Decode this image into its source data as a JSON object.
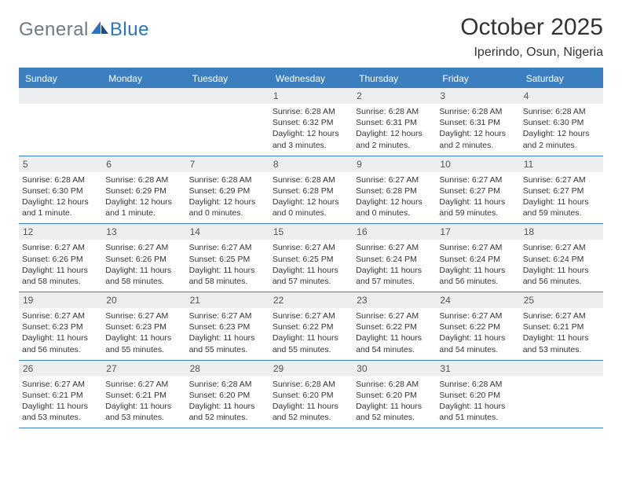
{
  "logo": {
    "general": "General",
    "blue": "Blue"
  },
  "title": "October 2025",
  "location": "Iperindo, Osun, Nigeria",
  "colors": {
    "accent": "#3b7fbf",
    "daybar": "#eceeef",
    "text": "#333333",
    "logo_gray": "#6b7a86",
    "logo_blue": "#2b74c0"
  },
  "dow": [
    "Sunday",
    "Monday",
    "Tuesday",
    "Wednesday",
    "Thursday",
    "Friday",
    "Saturday"
  ],
  "weeks": [
    [
      null,
      null,
      null,
      {
        "n": "1",
        "sunrise": "Sunrise: 6:28 AM",
        "sunset": "Sunset: 6:32 PM",
        "daylight": "Daylight: 12 hours and 3 minutes."
      },
      {
        "n": "2",
        "sunrise": "Sunrise: 6:28 AM",
        "sunset": "Sunset: 6:31 PM",
        "daylight": "Daylight: 12 hours and 2 minutes."
      },
      {
        "n": "3",
        "sunrise": "Sunrise: 6:28 AM",
        "sunset": "Sunset: 6:31 PM",
        "daylight": "Daylight: 12 hours and 2 minutes."
      },
      {
        "n": "4",
        "sunrise": "Sunrise: 6:28 AM",
        "sunset": "Sunset: 6:30 PM",
        "daylight": "Daylight: 12 hours and 2 minutes."
      }
    ],
    [
      {
        "n": "5",
        "sunrise": "Sunrise: 6:28 AM",
        "sunset": "Sunset: 6:30 PM",
        "daylight": "Daylight: 12 hours and 1 minute."
      },
      {
        "n": "6",
        "sunrise": "Sunrise: 6:28 AM",
        "sunset": "Sunset: 6:29 PM",
        "daylight": "Daylight: 12 hours and 1 minute."
      },
      {
        "n": "7",
        "sunrise": "Sunrise: 6:28 AM",
        "sunset": "Sunset: 6:29 PM",
        "daylight": "Daylight: 12 hours and 0 minutes."
      },
      {
        "n": "8",
        "sunrise": "Sunrise: 6:28 AM",
        "sunset": "Sunset: 6:28 PM",
        "daylight": "Daylight: 12 hours and 0 minutes."
      },
      {
        "n": "9",
        "sunrise": "Sunrise: 6:27 AM",
        "sunset": "Sunset: 6:28 PM",
        "daylight": "Daylight: 12 hours and 0 minutes."
      },
      {
        "n": "10",
        "sunrise": "Sunrise: 6:27 AM",
        "sunset": "Sunset: 6:27 PM",
        "daylight": "Daylight: 11 hours and 59 minutes."
      },
      {
        "n": "11",
        "sunrise": "Sunrise: 6:27 AM",
        "sunset": "Sunset: 6:27 PM",
        "daylight": "Daylight: 11 hours and 59 minutes."
      }
    ],
    [
      {
        "n": "12",
        "sunrise": "Sunrise: 6:27 AM",
        "sunset": "Sunset: 6:26 PM",
        "daylight": "Daylight: 11 hours and 58 minutes."
      },
      {
        "n": "13",
        "sunrise": "Sunrise: 6:27 AM",
        "sunset": "Sunset: 6:26 PM",
        "daylight": "Daylight: 11 hours and 58 minutes."
      },
      {
        "n": "14",
        "sunrise": "Sunrise: 6:27 AM",
        "sunset": "Sunset: 6:25 PM",
        "daylight": "Daylight: 11 hours and 58 minutes."
      },
      {
        "n": "15",
        "sunrise": "Sunrise: 6:27 AM",
        "sunset": "Sunset: 6:25 PM",
        "daylight": "Daylight: 11 hours and 57 minutes."
      },
      {
        "n": "16",
        "sunrise": "Sunrise: 6:27 AM",
        "sunset": "Sunset: 6:24 PM",
        "daylight": "Daylight: 11 hours and 57 minutes."
      },
      {
        "n": "17",
        "sunrise": "Sunrise: 6:27 AM",
        "sunset": "Sunset: 6:24 PM",
        "daylight": "Daylight: 11 hours and 56 minutes."
      },
      {
        "n": "18",
        "sunrise": "Sunrise: 6:27 AM",
        "sunset": "Sunset: 6:24 PM",
        "daylight": "Daylight: 11 hours and 56 minutes."
      }
    ],
    [
      {
        "n": "19",
        "sunrise": "Sunrise: 6:27 AM",
        "sunset": "Sunset: 6:23 PM",
        "daylight": "Daylight: 11 hours and 56 minutes."
      },
      {
        "n": "20",
        "sunrise": "Sunrise: 6:27 AM",
        "sunset": "Sunset: 6:23 PM",
        "daylight": "Daylight: 11 hours and 55 minutes."
      },
      {
        "n": "21",
        "sunrise": "Sunrise: 6:27 AM",
        "sunset": "Sunset: 6:23 PM",
        "daylight": "Daylight: 11 hours and 55 minutes."
      },
      {
        "n": "22",
        "sunrise": "Sunrise: 6:27 AM",
        "sunset": "Sunset: 6:22 PM",
        "daylight": "Daylight: 11 hours and 55 minutes."
      },
      {
        "n": "23",
        "sunrise": "Sunrise: 6:27 AM",
        "sunset": "Sunset: 6:22 PM",
        "daylight": "Daylight: 11 hours and 54 minutes."
      },
      {
        "n": "24",
        "sunrise": "Sunrise: 6:27 AM",
        "sunset": "Sunset: 6:22 PM",
        "daylight": "Daylight: 11 hours and 54 minutes."
      },
      {
        "n": "25",
        "sunrise": "Sunrise: 6:27 AM",
        "sunset": "Sunset: 6:21 PM",
        "daylight": "Daylight: 11 hours and 53 minutes."
      }
    ],
    [
      {
        "n": "26",
        "sunrise": "Sunrise: 6:27 AM",
        "sunset": "Sunset: 6:21 PM",
        "daylight": "Daylight: 11 hours and 53 minutes."
      },
      {
        "n": "27",
        "sunrise": "Sunrise: 6:27 AM",
        "sunset": "Sunset: 6:21 PM",
        "daylight": "Daylight: 11 hours and 53 minutes."
      },
      {
        "n": "28",
        "sunrise": "Sunrise: 6:28 AM",
        "sunset": "Sunset: 6:20 PM",
        "daylight": "Daylight: 11 hours and 52 minutes."
      },
      {
        "n": "29",
        "sunrise": "Sunrise: 6:28 AM",
        "sunset": "Sunset: 6:20 PM",
        "daylight": "Daylight: 11 hours and 52 minutes."
      },
      {
        "n": "30",
        "sunrise": "Sunrise: 6:28 AM",
        "sunset": "Sunset: 6:20 PM",
        "daylight": "Daylight: 11 hours and 52 minutes."
      },
      {
        "n": "31",
        "sunrise": "Sunrise: 6:28 AM",
        "sunset": "Sunset: 6:20 PM",
        "daylight": "Daylight: 11 hours and 51 minutes."
      },
      null
    ]
  ]
}
